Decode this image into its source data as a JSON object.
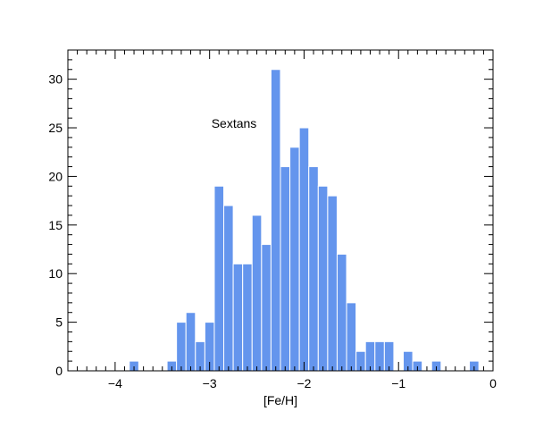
{
  "chart_data": {
    "type": "bar",
    "xlabel": "[Fe/H]",
    "ylabel": "",
    "annotation": "Sextans",
    "xlim": [
      -4.5,
      0
    ],
    "ylim": [
      0,
      33
    ],
    "x_ticks": [
      -4,
      -3,
      -2,
      -1,
      0
    ],
    "x_tick_labels": [
      "−4",
      "−3",
      "−2",
      "−1",
      "0"
    ],
    "y_ticks": [
      0,
      5,
      10,
      15,
      20,
      25,
      30
    ],
    "y_tick_labels": [
      "0",
      "5",
      "10",
      "15",
      "20",
      "25",
      "30"
    ],
    "bar_color": "#6495ED",
    "bin_width": 0.1,
    "bins": [
      {
        "x0": -3.85,
        "value": 1
      },
      {
        "x0": -3.45,
        "value": 1
      },
      {
        "x0": -3.35,
        "value": 5
      },
      {
        "x0": -3.25,
        "value": 6
      },
      {
        "x0": -3.15,
        "value": 3
      },
      {
        "x0": -3.05,
        "value": 5
      },
      {
        "x0": -2.95,
        "value": 19
      },
      {
        "x0": -2.85,
        "value": 17
      },
      {
        "x0": -2.75,
        "value": 11
      },
      {
        "x0": -2.65,
        "value": 11
      },
      {
        "x0": -2.55,
        "value": 16
      },
      {
        "x0": -2.45,
        "value": 13
      },
      {
        "x0": -2.35,
        "value": 31
      },
      {
        "x0": -2.25,
        "value": 21
      },
      {
        "x0": -2.15,
        "value": 23
      },
      {
        "x0": -2.05,
        "value": 25
      },
      {
        "x0": -1.95,
        "value": 21
      },
      {
        "x0": -1.85,
        "value": 19
      },
      {
        "x0": -1.75,
        "value": 18
      },
      {
        "x0": -1.65,
        "value": 12
      },
      {
        "x0": -1.55,
        "value": 7
      },
      {
        "x0": -1.45,
        "value": 2
      },
      {
        "x0": -1.35,
        "value": 3
      },
      {
        "x0": -1.25,
        "value": 3
      },
      {
        "x0": -1.15,
        "value": 3
      },
      {
        "x0": -0.95,
        "value": 2
      },
      {
        "x0": -0.85,
        "value": 1
      },
      {
        "x0": -0.65,
        "value": 1
      },
      {
        "x0": -0.25,
        "value": 1
      }
    ]
  }
}
